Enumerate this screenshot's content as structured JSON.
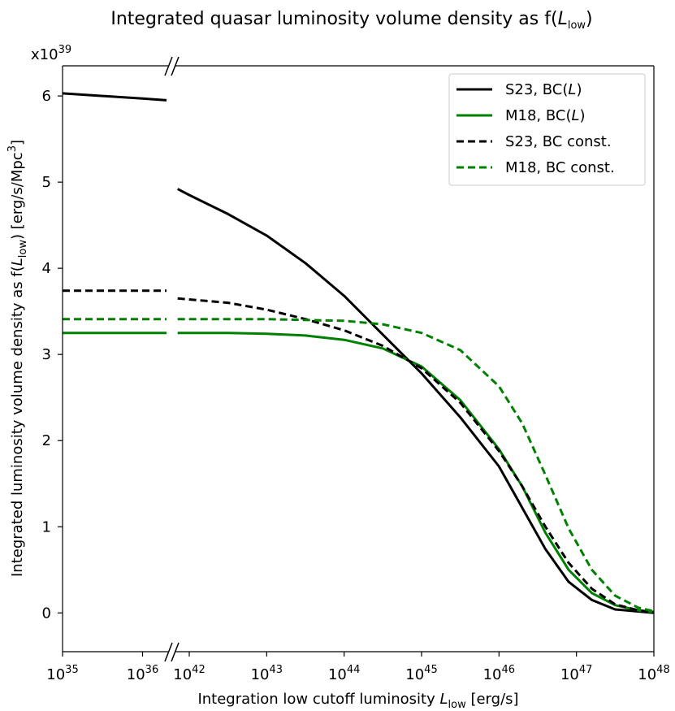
{
  "chart_data": {
    "type": "line",
    "title": {
      "prefix": "Integrated quasar luminosity volume density as f(",
      "var": "L",
      "sub": "low",
      "suffix": ")"
    },
    "xlabel": {
      "prefix": "Integration low cutoff luminosity ",
      "var": "L",
      "sub": "low",
      "suffix": " [erg/s]"
    },
    "ylabel": {
      "prefix": "Integrated luminosity volume density as f(",
      "var": "L",
      "sub": "low",
      "mid": ") [erg/s/Mpc",
      "sup": "3",
      "suffix": "]"
    },
    "y_offset": {
      "base": "x10",
      "exp": "39"
    },
    "x_scale": "log",
    "x_axis_break": {
      "left_range_log10": [
        35,
        36.3
      ],
      "right_range_log10": [
        41.85,
        48
      ]
    },
    "xticks_left": [
      {
        "base": "10",
        "exp": "35",
        "logx": 35
      },
      {
        "base": "10",
        "exp": "36",
        "logx": 36
      }
    ],
    "xticks_right": [
      {
        "base": "10",
        "exp": "42",
        "logx": 42
      },
      {
        "base": "10",
        "exp": "43",
        "logx": 43
      },
      {
        "base": "10",
        "exp": "44",
        "logx": 44
      },
      {
        "base": "10",
        "exp": "45",
        "logx": 45
      },
      {
        "base": "10",
        "exp": "46",
        "logx": 46
      },
      {
        "base": "10",
        "exp": "47",
        "logx": 47
      },
      {
        "base": "10",
        "exp": "48",
        "logx": 48
      }
    ],
    "ylim": [
      -0.45,
      6.35
    ],
    "yticks": [
      {
        "label": "0",
        "value": 0
      },
      {
        "label": "1",
        "value": 1
      },
      {
        "label": "2",
        "value": 2
      },
      {
        "label": "3",
        "value": 3
      },
      {
        "label": "4",
        "value": 4
      },
      {
        "label": "5",
        "value": 5
      },
      {
        "label": "6",
        "value": 6
      }
    ],
    "legend_position": "top-right",
    "series": [
      {
        "id": "s23-bcl",
        "name": "S23, BC(L)",
        "label_prefix": "S23, BC(",
        "label_var": "L",
        "label_suffix": ")",
        "color": "#000000",
        "dash": "solid",
        "left_points": [
          [
            35,
            6.03
          ],
          [
            35.5,
            6.0
          ],
          [
            36,
            5.97
          ],
          [
            36.3,
            5.95
          ]
        ],
        "right_points": [
          [
            41.85,
            4.92
          ],
          [
            42,
            4.85
          ],
          [
            42.5,
            4.63
          ],
          [
            43,
            4.38
          ],
          [
            43.5,
            4.06
          ],
          [
            44,
            3.68
          ],
          [
            44.5,
            3.23
          ],
          [
            45,
            2.78
          ],
          [
            45.5,
            2.27
          ],
          [
            46,
            1.7
          ],
          [
            46.3,
            1.22
          ],
          [
            46.6,
            0.74
          ],
          [
            46.9,
            0.36
          ],
          [
            47.2,
            0.15
          ],
          [
            47.5,
            0.04
          ],
          [
            48,
            0.0
          ]
        ]
      },
      {
        "id": "m18-bcl",
        "name": "M18, BC(L)",
        "label_prefix": "M18, BC(",
        "label_var": "L",
        "label_suffix": ")",
        "color": "#008000",
        "dash": "solid",
        "left_points": [
          [
            35,
            3.25
          ],
          [
            36.3,
            3.25
          ]
        ],
        "right_points": [
          [
            41.85,
            3.25
          ],
          [
            42.5,
            3.25
          ],
          [
            43,
            3.24
          ],
          [
            43.5,
            3.22
          ],
          [
            44,
            3.17
          ],
          [
            44.5,
            3.07
          ],
          [
            45,
            2.86
          ],
          [
            45.5,
            2.47
          ],
          [
            46,
            1.9
          ],
          [
            46.3,
            1.47
          ],
          [
            46.6,
            0.93
          ],
          [
            46.9,
            0.5
          ],
          [
            47.2,
            0.23
          ],
          [
            47.5,
            0.09
          ],
          [
            47.8,
            0.03
          ],
          [
            48,
            0.01
          ]
        ]
      },
      {
        "id": "s23-bcc",
        "name": "S23, BC const.",
        "label_prefix": "S23, BC const.",
        "label_var": "",
        "label_suffix": "",
        "color": "#000000",
        "dash": "dashed",
        "left_points": [
          [
            35,
            3.74
          ],
          [
            36.3,
            3.74
          ]
        ],
        "right_points": [
          [
            41.85,
            3.65
          ],
          [
            42.5,
            3.6
          ],
          [
            43,
            3.52
          ],
          [
            43.5,
            3.41
          ],
          [
            44,
            3.28
          ],
          [
            44.5,
            3.1
          ],
          [
            45,
            2.84
          ],
          [
            45.5,
            2.44
          ],
          [
            46,
            1.88
          ],
          [
            46.3,
            1.47
          ],
          [
            46.6,
            1.0
          ],
          [
            46.9,
            0.58
          ],
          [
            47.2,
            0.28
          ],
          [
            47.5,
            0.1
          ],
          [
            47.8,
            0.03
          ],
          [
            48,
            0.01
          ]
        ]
      },
      {
        "id": "m18-bcc",
        "name": "M18, BC const.",
        "label_prefix": "M18, BC const.",
        "label_var": "",
        "label_suffix": "",
        "color": "#008000",
        "dash": "dashed",
        "left_points": [
          [
            35,
            3.41
          ],
          [
            36.3,
            3.41
          ]
        ],
        "right_points": [
          [
            41.85,
            3.41
          ],
          [
            42.5,
            3.41
          ],
          [
            43,
            3.41
          ],
          [
            43.5,
            3.4
          ],
          [
            44,
            3.39
          ],
          [
            44.5,
            3.35
          ],
          [
            45,
            3.25
          ],
          [
            45.5,
            3.05
          ],
          [
            46,
            2.63
          ],
          [
            46.3,
            2.2
          ],
          [
            46.6,
            1.6
          ],
          [
            46.9,
            0.98
          ],
          [
            47.2,
            0.5
          ],
          [
            47.5,
            0.2
          ],
          [
            47.8,
            0.06
          ],
          [
            48,
            0.02
          ]
        ]
      }
    ]
  }
}
